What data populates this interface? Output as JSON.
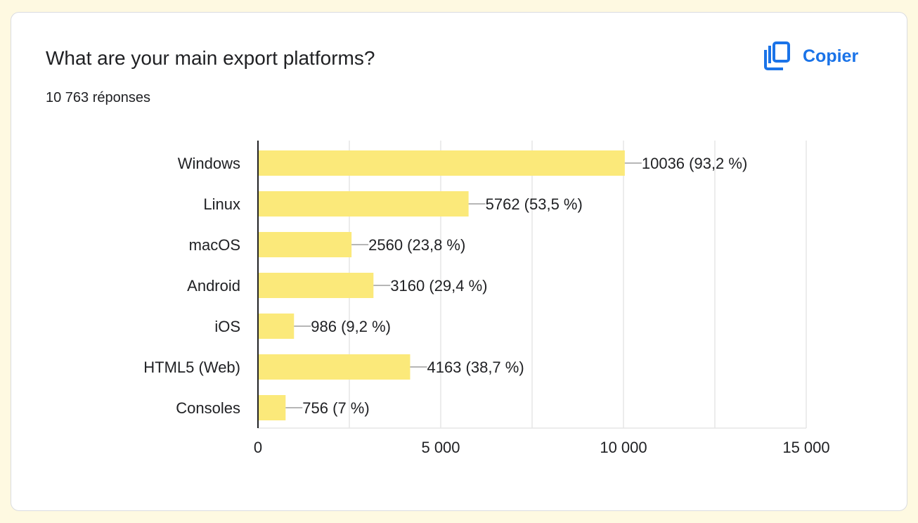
{
  "card": {
    "title": "What are your main export platforms?",
    "response_count": "10 763 réponses",
    "copy_label": "Copier",
    "copy_icon": "copy-icon"
  },
  "colors": {
    "bar": "#fbe97a",
    "accent": "#1a73e8",
    "grid": "#e6e6e6",
    "axis": "#202124",
    "leader": "#9e9e9e"
  },
  "chart_data": {
    "type": "bar",
    "orientation": "horizontal",
    "categories": [
      "Windows",
      "Linux",
      "macOS",
      "Android",
      "iOS",
      "HTML5 (Web)",
      "Consoles"
    ],
    "values": [
      10036,
      5762,
      2560,
      3160,
      986,
      4163,
      756
    ],
    "data_labels": [
      "10036 (93,2 %)",
      "5762 (53,5 %)",
      "2560 (23,8 %)",
      "3160 (29,4 %)",
      "986 (9,2 %)",
      "4163 (38,7 %)",
      "756 (7 %)"
    ],
    "title": "What are your main export platforms?",
    "xlim": [
      0,
      15000
    ],
    "xticks": [
      0,
      5000,
      10000,
      15000
    ],
    "xtick_labels": [
      "0",
      "5 000",
      "10 000",
      "15 000"
    ],
    "grid": true,
    "legend": "none"
  }
}
